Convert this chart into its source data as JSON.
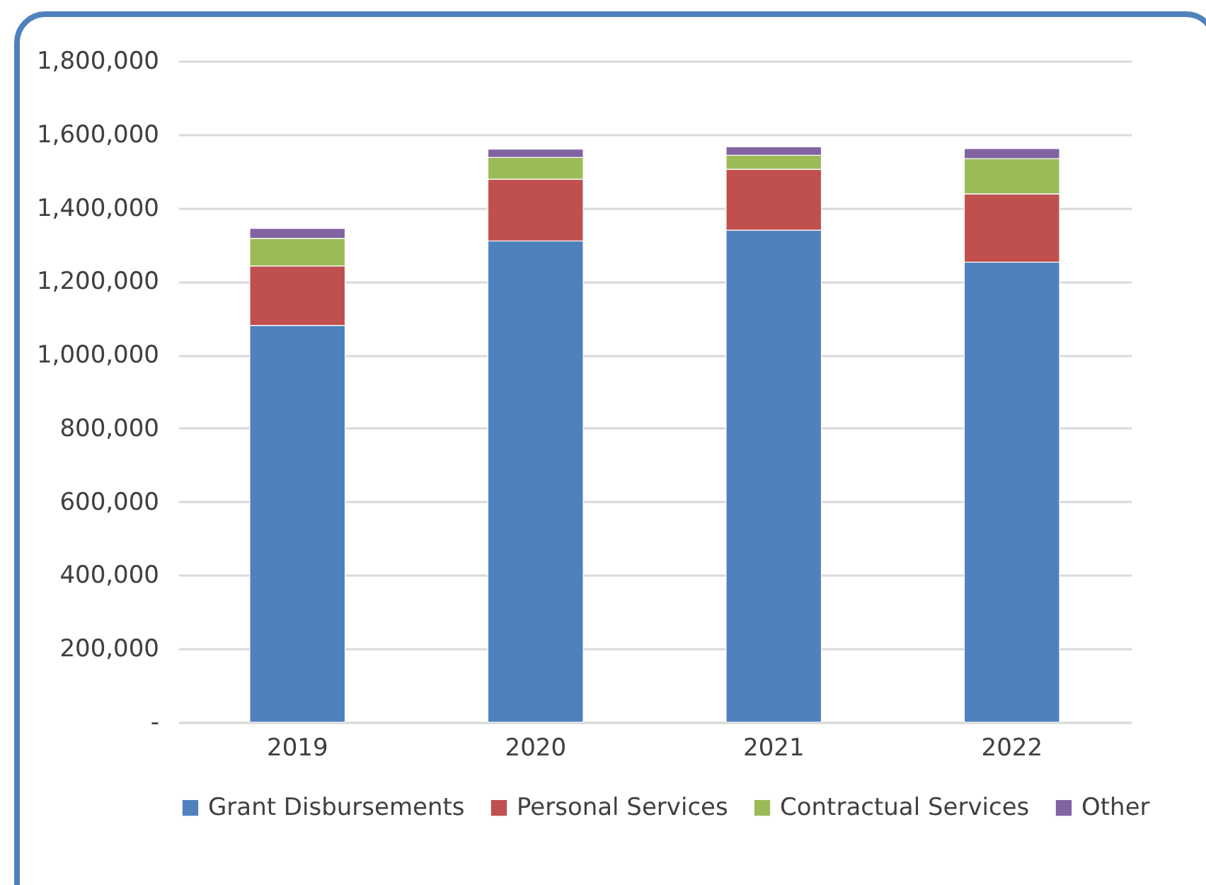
{
  "chart_data": {
    "type": "bar",
    "stacked": true,
    "categories": [
      "2019",
      "2020",
      "2021",
      "2022"
    ],
    "series": [
      {
        "name": "Grant Disbursements",
        "color": "#4f81bd",
        "values": [
          1080000,
          1310000,
          1339000,
          1252000
        ]
      },
      {
        "name": "Personal Services",
        "color": "#c0504d",
        "values": [
          162000,
          168000,
          166000,
          186000
        ]
      },
      {
        "name": "Contractual Services",
        "color": "#9bbb59",
        "values": [
          75000,
          59000,
          38000,
          96000
        ]
      },
      {
        "name": "Other",
        "color": "#8064a2",
        "values": [
          27000,
          23000,
          23000,
          27000
        ]
      }
    ],
    "ylim": [
      0,
      1800000
    ],
    "yticks": [
      {
        "value": 0,
        "label": "-"
      },
      {
        "value": 200000,
        "label": "200,000"
      },
      {
        "value": 400000,
        "label": "400,000"
      },
      {
        "value": 600000,
        "label": "600,000"
      },
      {
        "value": 800000,
        "label": "800,000"
      },
      {
        "value": 1000000,
        "label": "1,000,000"
      },
      {
        "value": 1200000,
        "label": "1,200,000"
      },
      {
        "value": 1400000,
        "label": "1,400,000"
      },
      {
        "value": 1600000,
        "label": "1,600,000"
      },
      {
        "value": 1800000,
        "label": "1,800,000"
      }
    ],
    "grid": "y",
    "legend": "bottom"
  }
}
